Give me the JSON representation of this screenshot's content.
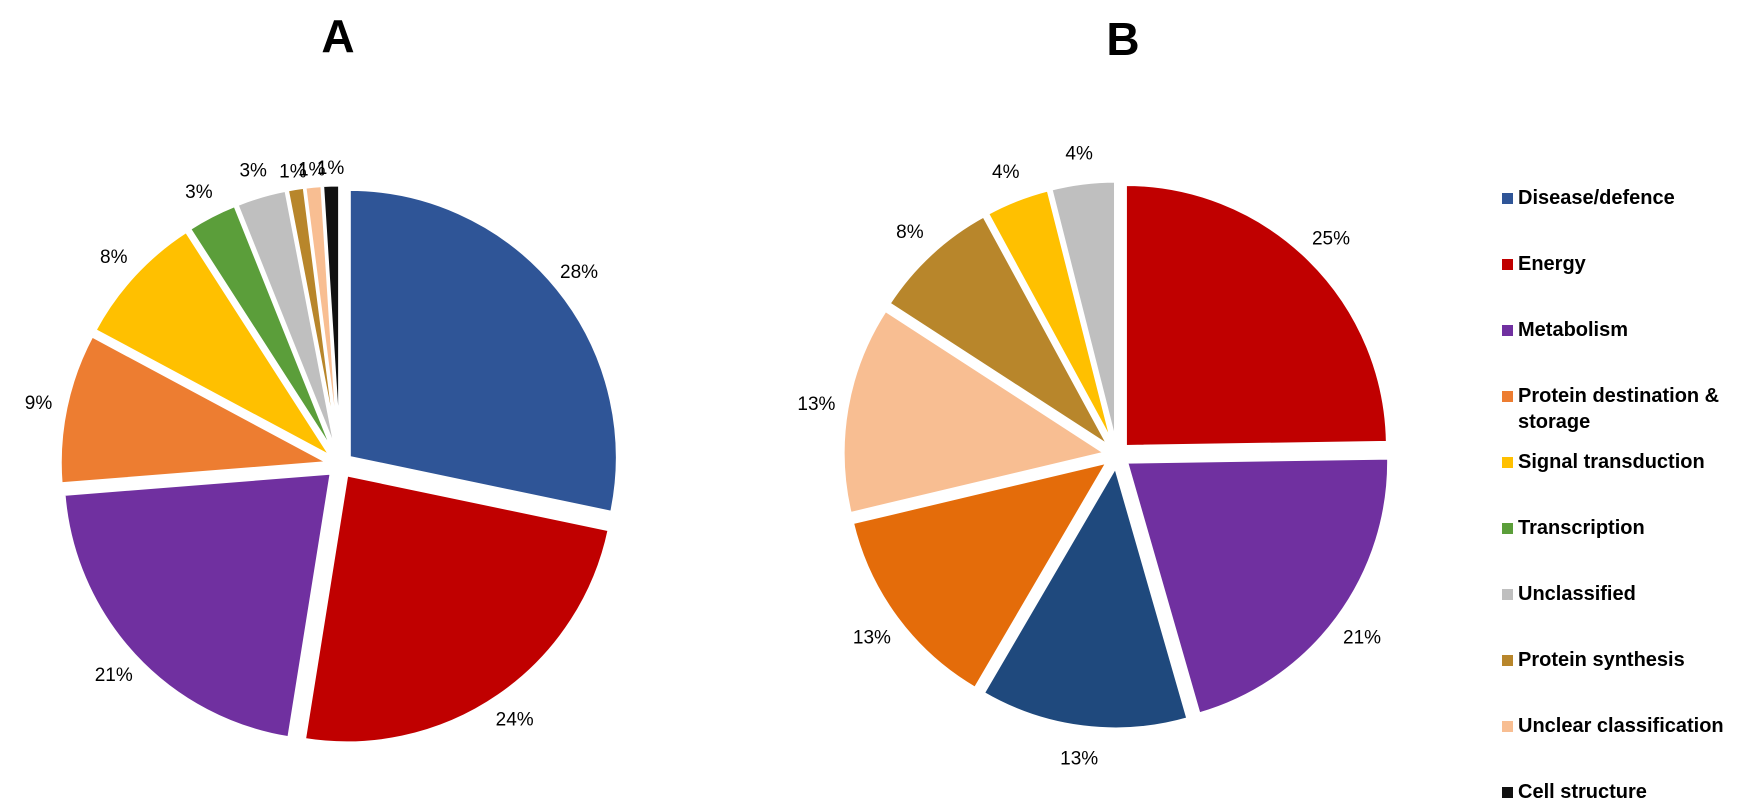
{
  "legend": [
    {
      "label": "Disease/defence",
      "color": "#2F5597"
    },
    {
      "label": "Energy",
      "color": "#C00000"
    },
    {
      "label": "Metabolism",
      "color": "#7030A0"
    },
    {
      "label": "Protein destination &",
      "label2": "storage",
      "color": "#ED7D31"
    },
    {
      "label": "Signal transduction",
      "color": "#FFC000"
    },
    {
      "label": "Transcription",
      "color": "#5B9E3A"
    },
    {
      "label": "Unclassified",
      "color": "#BFBFBF"
    },
    {
      "label": "Protein synthesis",
      "color": "#B8862B"
    },
    {
      "label": "Unclear classification",
      "color": "#F8BE92"
    },
    {
      "label": "Cell structure",
      "color": "#111111"
    }
  ],
  "chart_data": [
    {
      "type": "pie",
      "title": "A",
      "slices": [
        {
          "category": "Disease/defence",
          "value": 28,
          "label": "28%",
          "color": "#2F5597"
        },
        {
          "category": "Energy",
          "value": 24,
          "label": "24%",
          "color": "#C00000"
        },
        {
          "category": "Metabolism",
          "value": 21,
          "label": "21%",
          "color": "#7030A0"
        },
        {
          "category": "Protein destination & storage",
          "value": 9,
          "label": "9%",
          "color": "#ED7D31"
        },
        {
          "category": "Signal transduction",
          "value": 8,
          "label": "8%",
          "color": "#FFC000"
        },
        {
          "category": "Transcription",
          "value": 3,
          "label": "3%",
          "color": "#5B9E3A"
        },
        {
          "category": "Unclassified",
          "value": 3,
          "label": "3%",
          "color": "#BFBFBF"
        },
        {
          "category": "Protein synthesis",
          "value": 1,
          "label": "1%",
          "color": "#B8862B"
        },
        {
          "category": "Unclear classification",
          "value": 1,
          "label": "1%",
          "color": "#F8BE92"
        },
        {
          "category": "Cell structure",
          "value": 1,
          "label": "1%",
          "color": "#111111"
        }
      ]
    },
    {
      "type": "pie",
      "title": "B",
      "slices": [
        {
          "category": "Energy",
          "value": 25,
          "label": "25%",
          "color": "#C00000"
        },
        {
          "category": "Metabolism",
          "value": 21,
          "label": "21%",
          "color": "#7030A0"
        },
        {
          "category": "Disease/defence",
          "value": 13,
          "label": "13%",
          "color": "#1F497D"
        },
        {
          "category": "Protein destination & storage",
          "value": 13,
          "label": "13%",
          "color": "#E46C0A"
        },
        {
          "category": "Unclear classification",
          "value": 13,
          "label": "13%",
          "color": "#F8BE92"
        },
        {
          "category": "Protein synthesis",
          "value": 8,
          "label": "8%",
          "color": "#B8862B"
        },
        {
          "category": "Signal transduction",
          "value": 4,
          "label": "4%",
          "color": "#FFC000"
        },
        {
          "category": "Unclassified",
          "value": 4,
          "label": "4%",
          "color": "#BFBFBF"
        }
      ]
    }
  ]
}
